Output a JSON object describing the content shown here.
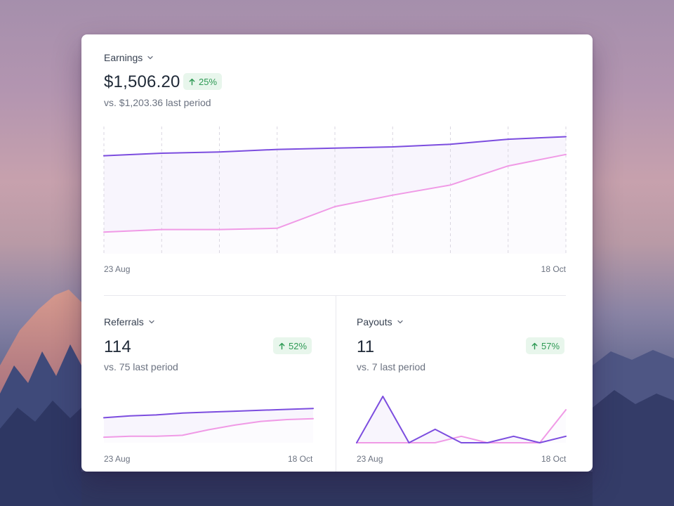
{
  "colors": {
    "primary_line": "#7c4ddf",
    "secondary_line": "#f09ae6",
    "area_fill": "#f8f5fd",
    "badge_bg": "#e8f6ec",
    "badge_text": "#2f9a55"
  },
  "earnings": {
    "title": "Earnings",
    "value": "$1,506.20",
    "change": "25%",
    "change_icon": "arrow-up-icon",
    "compare": "vs. $1,203.36 last period",
    "x_start": "23 Aug",
    "x_end": "18 Oct"
  },
  "referrals": {
    "title": "Referrals",
    "value": "114",
    "change": "52%",
    "change_icon": "arrow-up-icon",
    "compare": "vs. 75 last period",
    "x_start": "23 Aug",
    "x_end": "18 Oct"
  },
  "payouts": {
    "title": "Payouts",
    "value": "11",
    "change": "57%",
    "change_icon": "arrow-up-icon",
    "compare": "vs. 7 last period",
    "x_start": "23 Aug",
    "x_end": "18 Oct"
  },
  "chart_data": [
    {
      "type": "area",
      "xlabel": "",
      "ylabel": "",
      "x_ticks": [
        "23 Aug",
        "18 Oct"
      ],
      "grid": "vertical-dashed",
      "ylim": [
        0,
        100
      ],
      "series": [
        {
          "values": [
            77,
            79,
            80,
            82,
            83,
            84,
            86,
            90,
            92
          ]
        },
        {
          "values": [
            17,
            19,
            19,
            20,
            37,
            46,
            54,
            69,
            78
          ]
        }
      ]
    },
    {
      "type": "area",
      "xlabel": "",
      "ylabel": "",
      "x_ticks": [
        "23 Aug",
        "18 Oct"
      ],
      "grid": "none",
      "ylim": [
        0,
        100
      ],
      "series": [
        {
          "values": [
            54,
            58,
            60,
            64,
            66,
            68,
            70,
            72,
            74
          ]
        },
        {
          "values": [
            12,
            14,
            14,
            16,
            28,
            38,
            46,
            50,
            52
          ]
        }
      ]
    },
    {
      "type": "area",
      "xlabel": "",
      "ylabel": "",
      "x_ticks": [
        "23 Aug",
        "18 Oct"
      ],
      "grid": "none",
      "ylim": [
        0,
        100
      ],
      "series": [
        {
          "values": [
            0,
            100,
            0,
            29,
            0,
            0,
            14,
            0,
            14
          ]
        },
        {
          "values": [
            0,
            0,
            0,
            0,
            14,
            0,
            0,
            0,
            71
          ]
        }
      ]
    }
  ]
}
